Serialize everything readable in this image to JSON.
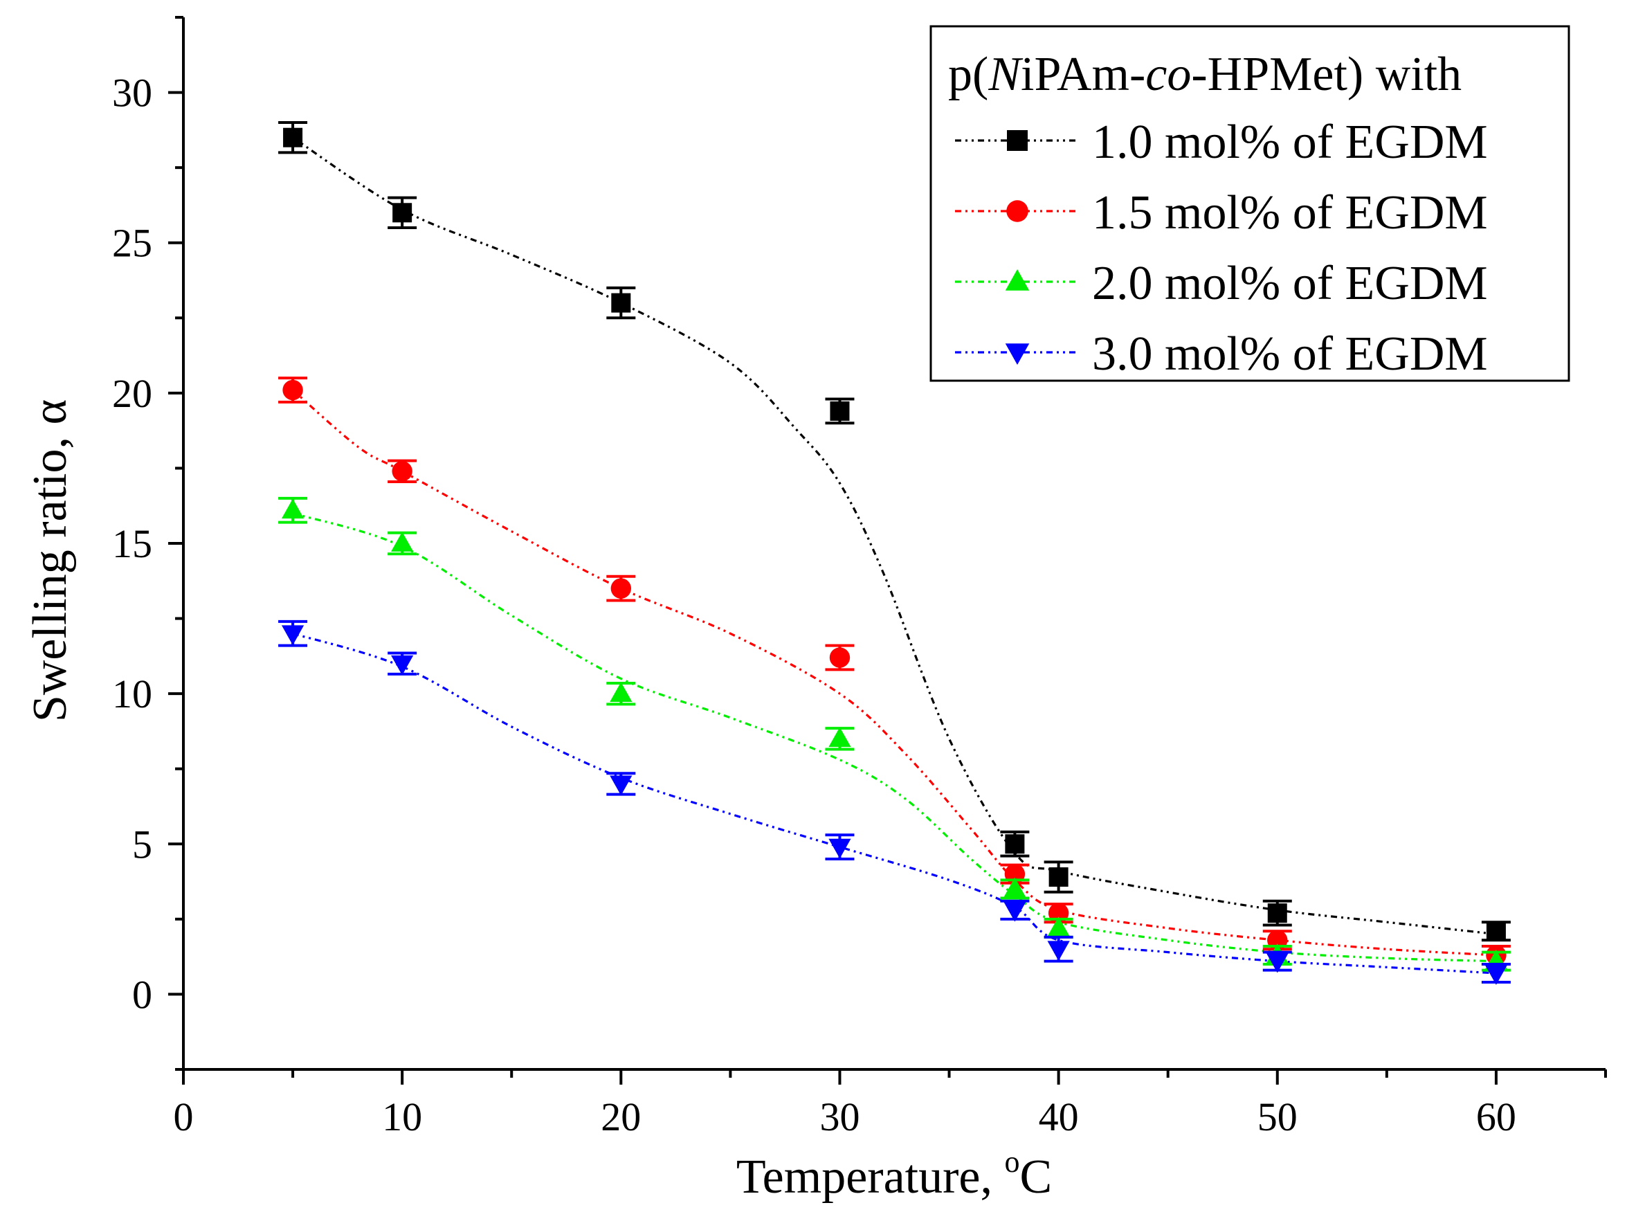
{
  "chart_data": {
    "type": "line",
    "xlabel": "Temperature, ",
    "xlabel_unit_sup": "o",
    "xlabel_unit": "C",
    "ylabel": "Swelling ratio, α",
    "xlim": [
      0,
      65
    ],
    "ylim": [
      -2.5,
      32.5
    ],
    "xticks": [
      "0",
      "10",
      "20",
      "30",
      "40",
      "50",
      "60"
    ],
    "yticks": [
      "0",
      "5",
      "10",
      "15",
      "20",
      "25",
      "30"
    ],
    "legend": {
      "title_parts": [
        "p(",
        "N",
        "iPAm-",
        "co",
        "-HPMet) with"
      ],
      "position": "top-right"
    },
    "series": [
      {
        "name": "1.0 mol% of EGDM",
        "color": "#000000",
        "marker": "square",
        "x": [
          5,
          10,
          20,
          30,
          38,
          40,
          50,
          60
        ],
        "values": [
          28.5,
          26.0,
          23.0,
          19.4,
          5.0,
          3.9,
          2.7,
          2.1
        ],
        "errors": [
          0.5,
          0.5,
          0.5,
          0.4,
          0.4,
          0.5,
          0.4,
          0.3
        ],
        "fit": [
          [
            5,
            28.5
          ],
          [
            10,
            26.1
          ],
          [
            15,
            24.6
          ],
          [
            20,
            23.0
          ],
          [
            25,
            21.0
          ],
          [
            28,
            18.8
          ],
          [
            30,
            17.0
          ],
          [
            32,
            14.0
          ],
          [
            35,
            8.5
          ],
          [
            38,
            4.7
          ],
          [
            40,
            4.1
          ],
          [
            45,
            3.4
          ],
          [
            50,
            2.8
          ],
          [
            55,
            2.4
          ],
          [
            60,
            2.0
          ]
        ]
      },
      {
        "name": "1.5 mol% of EGDM",
        "color": "#ff0000",
        "marker": "circle",
        "x": [
          5,
          10,
          20,
          30,
          38,
          40,
          50,
          60
        ],
        "values": [
          20.1,
          17.4,
          13.5,
          11.2,
          4.0,
          2.7,
          1.8,
          1.3
        ],
        "errors": [
          0.4,
          0.35,
          0.4,
          0.4,
          0.3,
          0.3,
          0.3,
          0.3
        ],
        "fit": [
          [
            5,
            20.1
          ],
          [
            8,
            18.2
          ],
          [
            10,
            17.4
          ],
          [
            15,
            15.4
          ],
          [
            20,
            13.5
          ],
          [
            25,
            12.0
          ],
          [
            30,
            10.0
          ],
          [
            33,
            8.0
          ],
          [
            36,
            5.5
          ],
          [
            38,
            3.8
          ],
          [
            40,
            2.8
          ],
          [
            45,
            2.2
          ],
          [
            50,
            1.8
          ],
          [
            55,
            1.5
          ],
          [
            60,
            1.3
          ]
        ]
      },
      {
        "name": "2.0 mol% of EGDM",
        "color": "#00ee00",
        "marker": "triangle-up",
        "x": [
          5,
          10,
          20,
          30,
          38,
          40,
          50,
          60
        ],
        "values": [
          16.1,
          15.0,
          10.0,
          8.5,
          3.5,
          2.2,
          1.3,
          1.1
        ],
        "errors": [
          0.4,
          0.35,
          0.35,
          0.35,
          0.3,
          0.3,
          0.3,
          0.3
        ],
        "fit": [
          [
            5,
            16.0
          ],
          [
            10,
            14.9
          ],
          [
            15,
            12.6
          ],
          [
            20,
            10.5
          ],
          [
            25,
            9.2
          ],
          [
            30,
            7.8
          ],
          [
            33,
            6.5
          ],
          [
            36,
            4.5
          ],
          [
            38,
            3.3
          ],
          [
            40,
            2.4
          ],
          [
            45,
            1.8
          ],
          [
            50,
            1.4
          ],
          [
            55,
            1.2
          ],
          [
            60,
            1.1
          ]
        ]
      },
      {
        "name": "3.0 mol% of EGDM",
        "color": "#0000ff",
        "marker": "triangle-down",
        "x": [
          5,
          10,
          20,
          30,
          38,
          40,
          50,
          60
        ],
        "values": [
          12.0,
          11.0,
          7.0,
          4.9,
          2.8,
          1.5,
          1.1,
          0.7
        ],
        "errors": [
          0.4,
          0.35,
          0.35,
          0.4,
          0.3,
          0.4,
          0.3,
          0.3
        ],
        "fit": [
          [
            5,
            12.0
          ],
          [
            10,
            10.9
          ],
          [
            15,
            8.9
          ],
          [
            20,
            7.2
          ],
          [
            25,
            6.0
          ],
          [
            30,
            4.9
          ],
          [
            35,
            3.8
          ],
          [
            38,
            2.9
          ],
          [
            40,
            1.8
          ],
          [
            45,
            1.4
          ],
          [
            50,
            1.1
          ],
          [
            55,
            0.9
          ],
          [
            60,
            0.7
          ]
        ]
      }
    ]
  }
}
